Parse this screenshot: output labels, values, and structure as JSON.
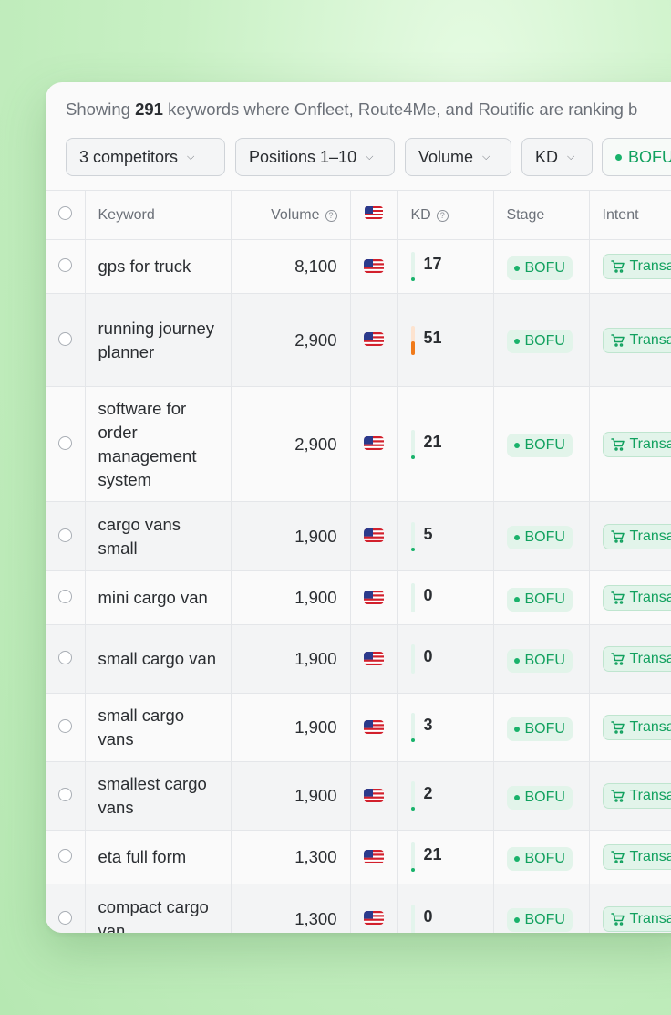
{
  "summary": {
    "prefix": "Showing",
    "count": "291",
    "suffix": "keywords where Onfleet, Route4Me, and Routific are ranking b"
  },
  "filters": [
    {
      "label": "3 competitors"
    },
    {
      "label": "Positions 1–10"
    },
    {
      "label": "Volume"
    },
    {
      "label": "KD"
    },
    {
      "label": "BOFU"
    }
  ],
  "columns": {
    "keyword": "Keyword",
    "volume": "Volume",
    "kd": "KD",
    "stage": "Stage",
    "intent": "Intent"
  },
  "help_icon_glyph": "?",
  "colors": {
    "accent_green": "#19b26b",
    "kd_orange": "#f07a1a",
    "kd_track_light": "#e3f4ec"
  },
  "rows": [
    {
      "keyword": "gps for truck",
      "volume": "8,100",
      "kd": "17",
      "kd_level": 0.17,
      "stage": "BOFU",
      "intent": "Transa"
    },
    {
      "keyword": "running journey planner",
      "volume": "2,900",
      "kd": "51",
      "kd_level": 0.51,
      "stage": "BOFU",
      "intent": "Transa"
    },
    {
      "keyword": "software for order management system",
      "volume": "2,900",
      "kd": "21",
      "kd_level": 0.21,
      "stage": "BOFU",
      "intent": "Transa"
    },
    {
      "keyword": "cargo vans small",
      "volume": "1,900",
      "kd": "5",
      "kd_level": 0.05,
      "stage": "BOFU",
      "intent": "Transa"
    },
    {
      "keyword": "mini cargo van",
      "volume": "1,900",
      "kd": "0",
      "kd_level": 0,
      "stage": "BOFU",
      "intent": "Transa"
    },
    {
      "keyword": "small cargo van",
      "volume": "1,900",
      "kd": "0",
      "kd_level": 0,
      "stage": "BOFU",
      "intent": "Transa"
    },
    {
      "keyword": "small cargo vans",
      "volume": "1,900",
      "kd": "3",
      "kd_level": 0.03,
      "stage": "BOFU",
      "intent": "Transa"
    },
    {
      "keyword": "smallest cargo vans",
      "volume": "1,900",
      "kd": "2",
      "kd_level": 0.02,
      "stage": "BOFU",
      "intent": "Transa"
    },
    {
      "keyword": "eta full form",
      "volume": "1,300",
      "kd": "21",
      "kd_level": 0.21,
      "stage": "BOFU",
      "intent": "Transa"
    },
    {
      "keyword": "compact cargo van",
      "volume": "1,300",
      "kd": "0",
      "kd_level": 0,
      "stage": "BOFU",
      "intent": "Transa"
    }
  ]
}
